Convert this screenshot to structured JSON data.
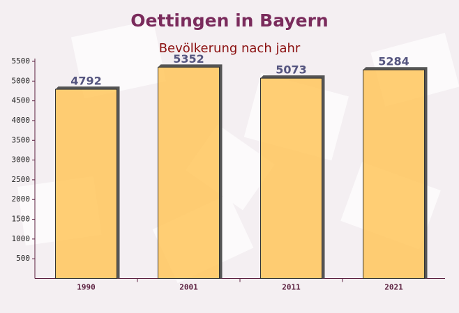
{
  "chart_data": {
    "type": "bar",
    "title": "Oettingen in Bayern",
    "subtitle": "Bevölkerung nach jahr",
    "categories": [
      "1990",
      "2001",
      "2011",
      "2021"
    ],
    "values": [
      4792,
      5352,
      5073,
      5284
    ],
    "color": "#ffc55c",
    "ylim": [
      0,
      5500
    ],
    "yticks": [
      500,
      1000,
      1500,
      2000,
      2500,
      3000,
      3500,
      4000,
      4500,
      5000,
      5500
    ]
  }
}
